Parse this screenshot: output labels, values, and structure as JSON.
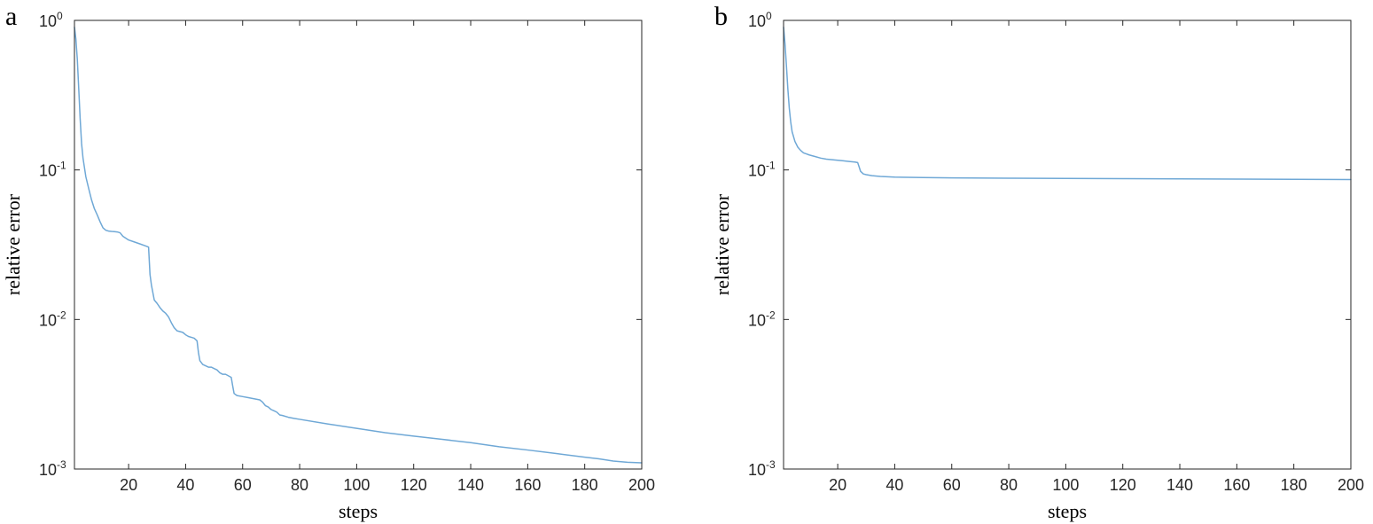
{
  "figure": {
    "panels": [
      {
        "label": "a",
        "chart_data": {
          "type": "line",
          "title": "",
          "xlabel": "steps",
          "ylabel": "relative error",
          "yscale": "log",
          "xlim": [
            1,
            200
          ],
          "ylim": [
            0.001,
            1
          ],
          "xticks": [
            20,
            40,
            60,
            80,
            100,
            120,
            140,
            160,
            180,
            200
          ],
          "xtick_labels": [
            "20",
            "40",
            "60",
            "80",
            "100",
            "120",
            "140",
            "160",
            "180",
            "200"
          ],
          "yticks": [
            0.001,
            0.01,
            0.1,
            1
          ],
          "ytick_labels": [
            {
              "base": "10",
              "exp": "-3"
            },
            {
              "base": "10",
              "exp": "-2"
            },
            {
              "base": "10",
              "exp": "-1"
            },
            {
              "base": "10",
              "exp": "0"
            }
          ],
          "grid": false,
          "series": [
            {
              "color": "#6fa8d6",
              "x": [
                1,
                1.5,
                2,
                2.5,
                3,
                3.5,
                4,
                5,
                6,
                7,
                8,
                9,
                10,
                11,
                12,
                13,
                14,
                15,
                16,
                17,
                18,
                19,
                20,
                22,
                24,
                26,
                27,
                27.5,
                28,
                29,
                30,
                31,
                32,
                33,
                34,
                35,
                36,
                37,
                38,
                39,
                40,
                41,
                42,
                43,
                44,
                44.5,
                45,
                46,
                47,
                48,
                49,
                50,
                51,
                52,
                53,
                54,
                55,
                56,
                56.5,
                57,
                58,
                60,
                62,
                64,
                66,
                67,
                68,
                69,
                70,
                71,
                72,
                73,
                74,
                76,
                78,
                80,
                90,
                100,
                110,
                120,
                130,
                140,
                150,
                160,
                170,
                180,
                185,
                190,
                195,
                200
              ],
              "y": [
                0.9,
                0.75,
                0.55,
                0.35,
                0.22,
                0.15,
                0.12,
                0.09,
                0.075,
                0.063,
                0.055,
                0.05,
                0.045,
                0.041,
                0.0395,
                0.039,
                0.0388,
                0.0387,
                0.0385,
                0.038,
                0.036,
                0.035,
                0.034,
                0.033,
                0.032,
                0.031,
                0.0305,
                0.02,
                0.017,
                0.0135,
                0.0128,
                0.012,
                0.0114,
                0.011,
                0.0104,
                0.0095,
                0.0088,
                0.0084,
                0.0083,
                0.0082,
                0.0079,
                0.0077,
                0.0076,
                0.0075,
                0.0072,
                0.006,
                0.0053,
                0.005,
                0.0049,
                0.0048,
                0.0048,
                0.0047,
                0.0046,
                0.0044,
                0.0043,
                0.0043,
                0.0042,
                0.0041,
                0.0036,
                0.0032,
                0.0031,
                0.00305,
                0.003,
                0.00295,
                0.0029,
                0.0028,
                0.00265,
                0.0026,
                0.0025,
                0.00245,
                0.0024,
                0.0023,
                0.00228,
                0.00222,
                0.00218,
                0.00215,
                0.002,
                0.00187,
                0.00175,
                0.00166,
                0.00158,
                0.0015,
                0.00141,
                0.00134,
                0.00127,
                0.0012,
                0.00117,
                0.00113,
                0.00111,
                0.0011
              ]
            }
          ]
        }
      },
      {
        "label": "b",
        "chart_data": {
          "type": "line",
          "title": "",
          "xlabel": "steps",
          "ylabel": "relative error",
          "yscale": "log",
          "xlim": [
            1,
            200
          ],
          "ylim": [
            0.001,
            1
          ],
          "xticks": [
            20,
            40,
            60,
            80,
            100,
            120,
            140,
            160,
            180,
            200
          ],
          "xtick_labels": [
            "20",
            "40",
            "60",
            "80",
            "100",
            "120",
            "140",
            "160",
            "180",
            "200"
          ],
          "yticks": [
            0.001,
            0.01,
            0.1,
            1
          ],
          "ytick_labels": [
            {
              "base": "10",
              "exp": "-3"
            },
            {
              "base": "10",
              "exp": "-2"
            },
            {
              "base": "10",
              "exp": "-1"
            },
            {
              "base": "10",
              "exp": "0"
            }
          ],
          "grid": false,
          "series": [
            {
              "color": "#6fa8d6",
              "x": [
                1,
                1.5,
                2,
                2.5,
                3,
                3.5,
                4,
                5,
                6,
                7,
                8,
                9,
                10,
                12,
                14,
                16,
                18,
                20,
                22,
                24,
                26,
                27,
                27.5,
                28,
                29,
                30,
                32,
                35,
                40,
                50,
                60,
                80,
                100,
                120,
                140,
                160,
                180,
                200
              ],
              "y": [
                0.9,
                0.7,
                0.5,
                0.35,
                0.26,
                0.21,
                0.18,
                0.155,
                0.142,
                0.135,
                0.13,
                0.128,
                0.126,
                0.123,
                0.12,
                0.118,
                0.117,
                0.116,
                0.115,
                0.114,
                0.113,
                0.112,
                0.105,
                0.098,
                0.094,
                0.093,
                0.0915,
                0.0905,
                0.0895,
                0.089,
                0.0885,
                0.088,
                0.0877,
                0.0874,
                0.0871,
                0.0868,
                0.0865,
                0.0862
              ]
            }
          ]
        }
      }
    ]
  }
}
